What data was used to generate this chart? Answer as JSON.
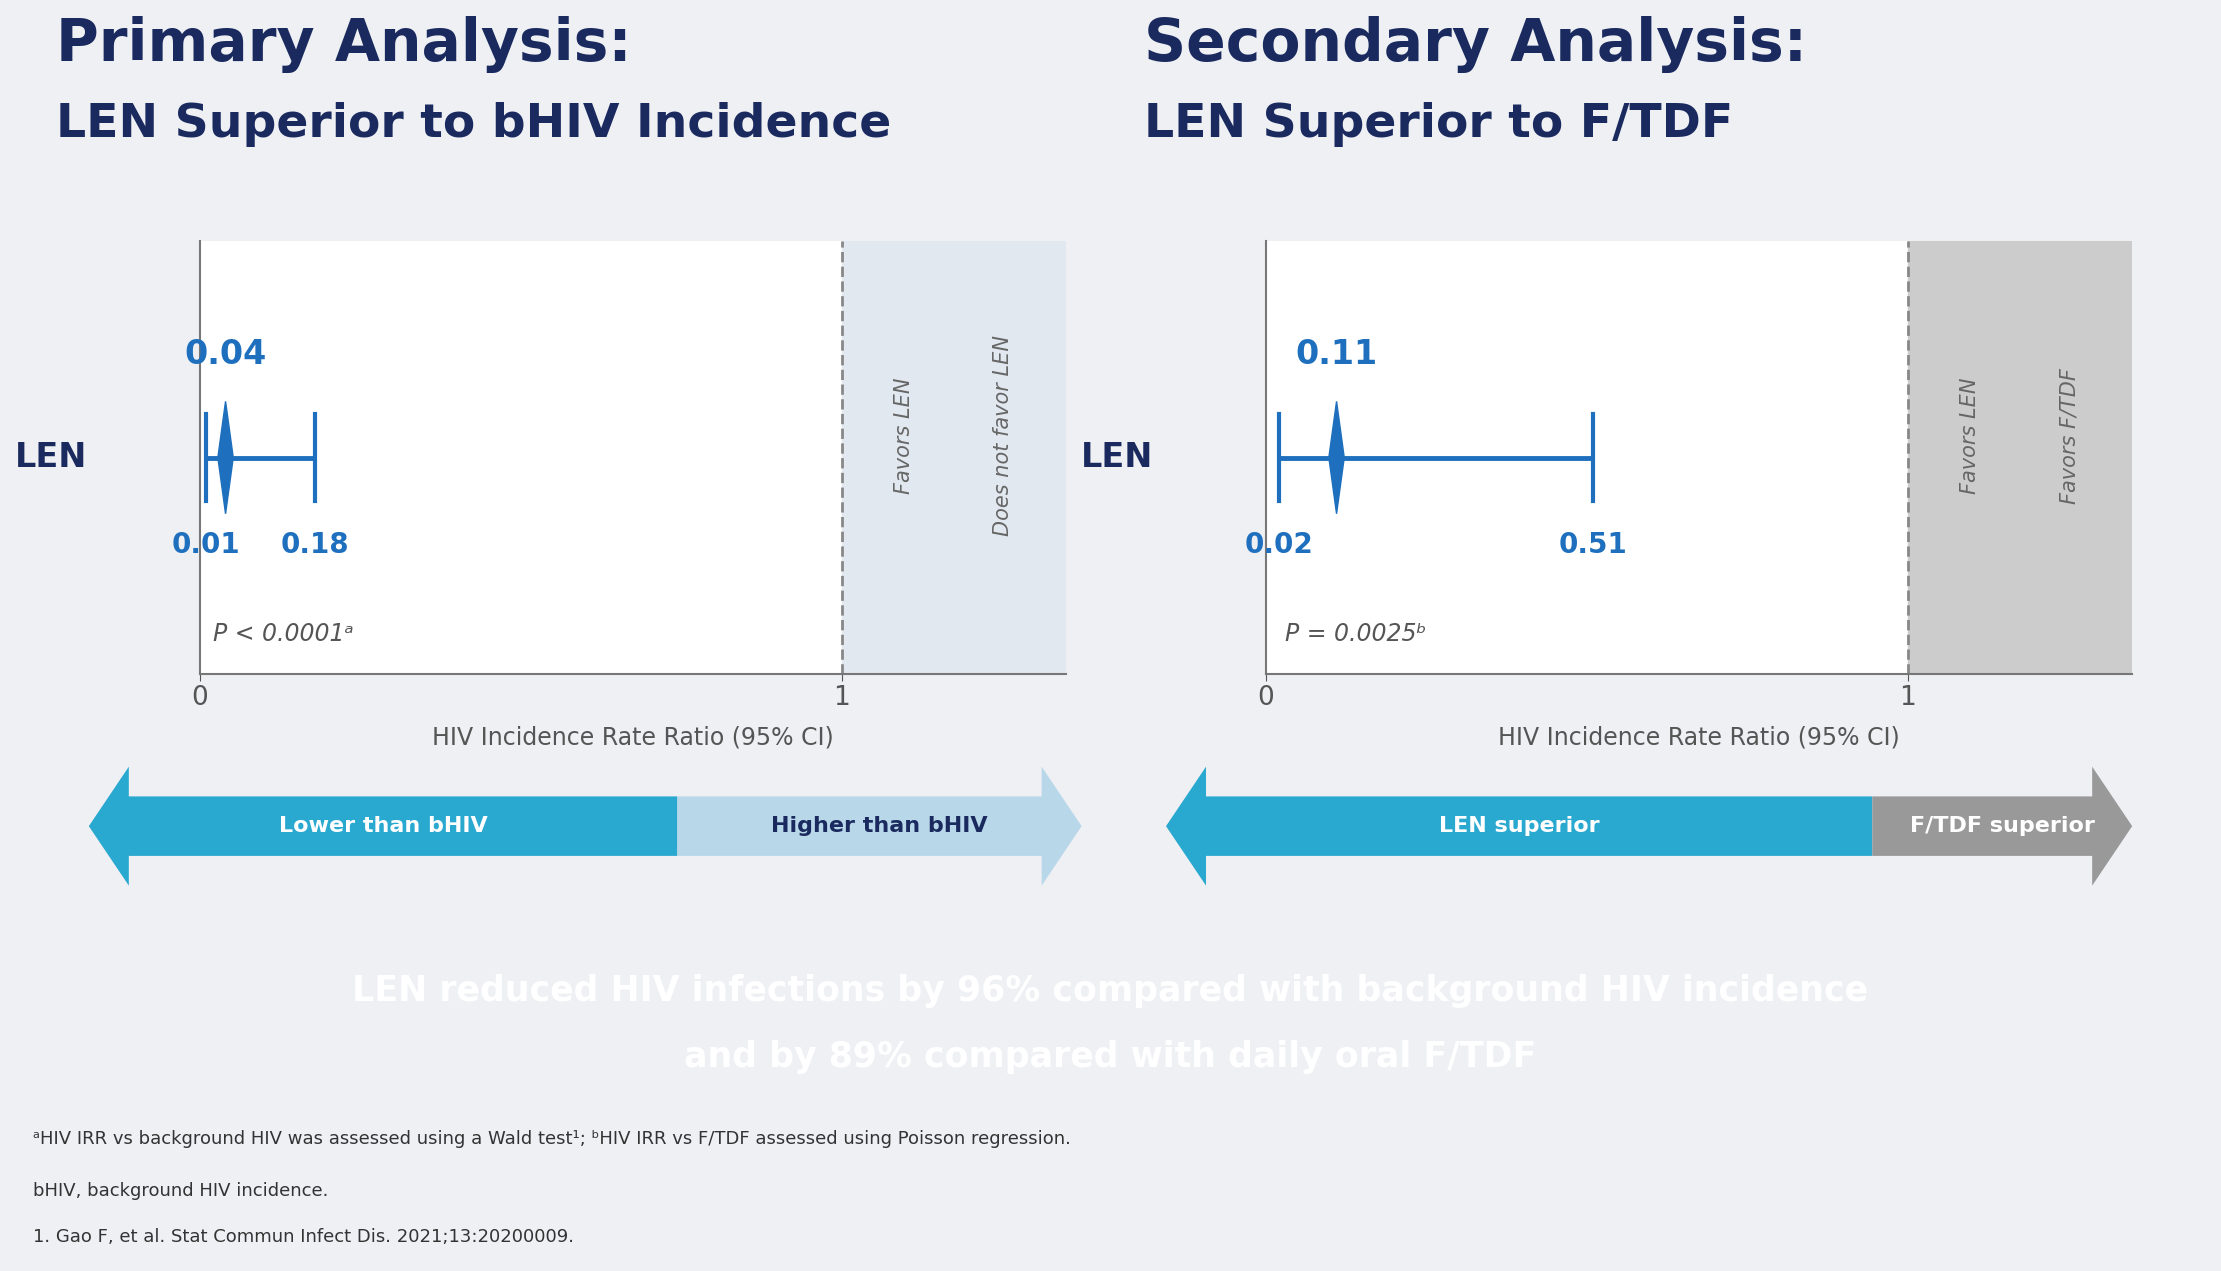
{
  "bg_color": "#eef0f4",
  "white": "#ffffff",
  "dark_navy": "#1a2a5e",
  "blue": "#1e6fbd",
  "cyan_arrow": "#29a8d0",
  "light_blue_arrow": "#b8d8ea",
  "gray_arrow": "#999999",
  "panel_bg_blue": "#e2e8ef",
  "panel_bg_gray": "#cccccc",
  "dark_panel": "#1a3060",
  "footnote_bg": "#eef0f4",
  "title1_line1": "Primary Analysis:",
  "title1_line2": "LEN Superior to bHIV Incidence",
  "title2_line1": "Secondary Analysis:",
  "title2_line2": "LEN Superior to F/TDF",
  "p1_estimate": 0.04,
  "p1_lower": 0.01,
  "p1_upper": 0.18,
  "p1_pvalue": "P < 0.0001ᵃ",
  "p2_estimate": 0.11,
  "p2_lower": 0.02,
  "p2_upper": 0.51,
  "p2_pvalue": "P = 0.0025ᵇ",
  "xlabel": "HIV Incidence Rate Ratio (95% CI)",
  "row_label": "LEN",
  "favors_len": "Favors LEN",
  "does_not_favor": "Does not favor LEN",
  "favors_ftdf": "Favors F/TDF",
  "arrow1_left": "Lower than bHIV",
  "arrow1_right": "Higher than bHIV",
  "arrow2_left": "LEN superior",
  "arrow2_right": "F/TDF superior",
  "bottom_text_line1": "LEN reduced HIV infections by 96% compared with background HIV incidence",
  "bottom_text_line2": "and by 89% compared with daily oral F/TDF",
  "footnote1": "ᵃHIV IRR vs background HIV was assessed using a Wald test¹; ᵇHIV IRR vs F/TDF assessed using Poisson regression.",
  "footnote2": "bHIV, background HIV incidence.",
  "footnote3": "1. Gao F, et al. Stat Commun Infect Dis. 2021;13:20200009."
}
